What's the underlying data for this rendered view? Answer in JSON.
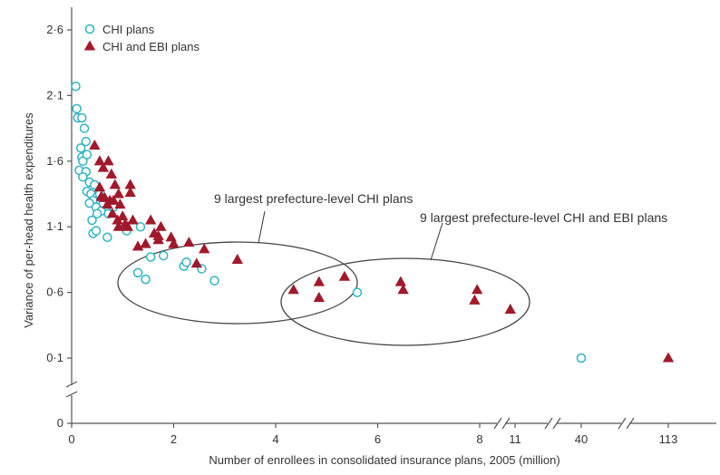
{
  "chart_data": {
    "type": "scatter",
    "xlabel": "Number of enrollees in consolidated insurance plans, 2005 (million)",
    "ylabel": "Variance of per-head health expenditures",
    "x_ticks": [
      "0",
      "2",
      "4",
      "6",
      "8",
      "11",
      "40",
      "113"
    ],
    "y_ticks": [
      "0",
      "0·1",
      "0·6",
      "1·1",
      "1·6",
      "2·1",
      "2·6"
    ],
    "x_axis_note": "broken axis: linear 0–8, then break, 11, break, 40, break, 113",
    "y_axis_note": "broken axis between 0 and 0·1",
    "legend": {
      "placement": "top-left"
    },
    "series": [
      {
        "name": "CHI plans",
        "marker": "open-circle",
        "color": "#2fb3c4",
        "points": [
          [
            0.08,
            2.17
          ],
          [
            0.1,
            2.0
          ],
          [
            0.12,
            1.93
          ],
          [
            0.2,
            1.93
          ],
          [
            0.25,
            1.85
          ],
          [
            0.28,
            1.75
          ],
          [
            0.18,
            1.7
          ],
          [
            0.2,
            1.63
          ],
          [
            0.22,
            1.6
          ],
          [
            0.3,
            1.65
          ],
          [
            0.15,
            1.53
          ],
          [
            0.28,
            1.52
          ],
          [
            0.35,
            1.44
          ],
          [
            0.22,
            1.48
          ],
          [
            0.45,
            1.42
          ],
          [
            0.3,
            1.37
          ],
          [
            0.38,
            1.35
          ],
          [
            0.5,
            1.33
          ],
          [
            0.42,
            1.3
          ],
          [
            0.55,
            1.35
          ],
          [
            0.62,
            1.28
          ],
          [
            0.48,
            1.25
          ],
          [
            0.35,
            1.28
          ],
          [
            0.58,
            1.22
          ],
          [
            0.72,
            1.2
          ],
          [
            0.82,
            1.25
          ],
          [
            0.4,
            1.15
          ],
          [
            0.5,
            1.2
          ],
          [
            0.42,
            1.05
          ],
          [
            0.48,
            1.07
          ],
          [
            0.7,
            1.02
          ],
          [
            1.08,
            1.07
          ],
          [
            1.35,
            1.1
          ],
          [
            1.55,
            0.87
          ],
          [
            1.8,
            0.88
          ],
          [
            1.3,
            0.75
          ],
          [
            1.45,
            0.7
          ],
          [
            2.2,
            0.8
          ],
          [
            2.25,
            0.83
          ],
          [
            2.55,
            0.78
          ],
          [
            2.8,
            0.69
          ],
          [
            5.6,
            0.6
          ],
          [
            40,
            0.1
          ]
        ]
      },
      {
        "name": "CHI and EBI plans",
        "marker": "filled-triangle",
        "color": "#a0192b",
        "points": [
          [
            0.45,
            1.72
          ],
          [
            0.55,
            1.6
          ],
          [
            0.72,
            1.6
          ],
          [
            0.62,
            1.55
          ],
          [
            0.78,
            1.5
          ],
          [
            1.15,
            1.42
          ],
          [
            0.55,
            1.4
          ],
          [
            0.85,
            1.42
          ],
          [
            1.15,
            1.36
          ],
          [
            0.92,
            1.35
          ],
          [
            0.58,
            1.33
          ],
          [
            0.65,
            1.32
          ],
          [
            0.75,
            1.3
          ],
          [
            0.82,
            1.3
          ],
          [
            0.7,
            1.27
          ],
          [
            0.95,
            1.27
          ],
          [
            0.8,
            1.2
          ],
          [
            1.0,
            1.18
          ],
          [
            1.2,
            1.15
          ],
          [
            0.9,
            1.15
          ],
          [
            1.05,
            1.12
          ],
          [
            0.92,
            1.1
          ],
          [
            1.1,
            1.1
          ],
          [
            1.55,
            1.15
          ],
          [
            1.75,
            1.1
          ],
          [
            1.62,
            1.05
          ],
          [
            1.7,
            1.03
          ],
          [
            1.95,
            1.02
          ],
          [
            1.3,
            0.95
          ],
          [
            1.45,
            0.97
          ],
          [
            1.7,
            1.0
          ],
          [
            2.0,
            0.97
          ],
          [
            2.3,
            0.98
          ],
          [
            2.6,
            0.93
          ],
          [
            2.45,
            0.82
          ],
          [
            3.25,
            0.85
          ],
          [
            4.35,
            0.62
          ],
          [
            4.85,
            0.68
          ],
          [
            4.85,
            0.56
          ],
          [
            5.35,
            0.72
          ],
          [
            6.45,
            0.68
          ],
          [
            6.5,
            0.62
          ],
          [
            7.95,
            0.62
          ],
          [
            7.9,
            0.54
          ],
          [
            8.6,
            0.47
          ],
          [
            113,
            0.1
          ]
        ]
      }
    ],
    "annotations": [
      {
        "text": "9 largest prefecture-level CHI plans"
      },
      {
        "text": "9 largest prefecture-level CHI and EBI plans"
      }
    ]
  }
}
